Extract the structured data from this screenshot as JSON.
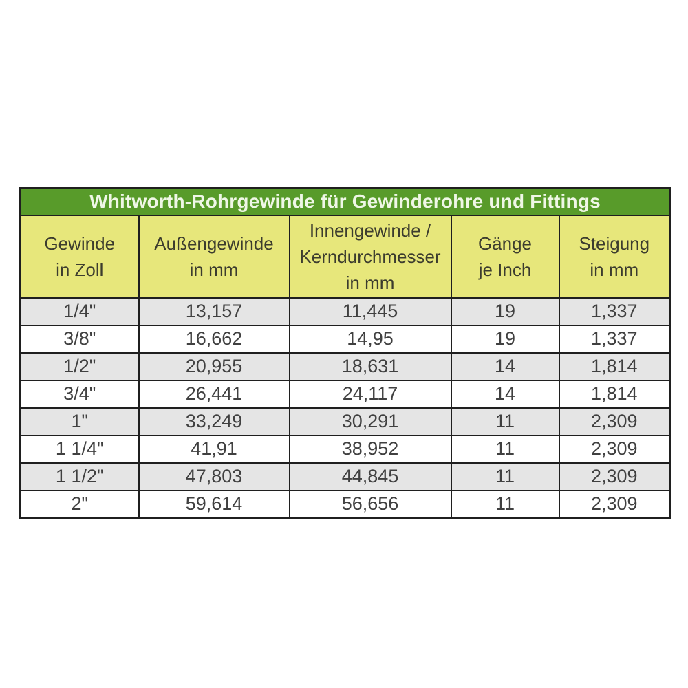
{
  "colors": {
    "title_bg": "#589b2a",
    "title_text": "#eff7e6",
    "header_bg": "#e7e77b",
    "header_text": "#3c3c2e",
    "row_alt_bg": "#e5e5e5",
    "row_bg": "#ffffff",
    "border": "#1f1f1f",
    "cell_text": "#404040",
    "page_bg": "#ffffff"
  },
  "table": {
    "title": "Whitworth-Rohrgewinde für Gewinderohre und Fittings",
    "columns": [
      {
        "label": "Gewinde in Zoll",
        "lines": [
          "Gewinde",
          "in Zoll"
        ]
      },
      {
        "label": "Außengewinde in mm",
        "lines": [
          "Außengewinde",
          "in mm"
        ]
      },
      {
        "label": "Innengewinde / Kerndurchmesser in mm",
        "lines": [
          "Innengewinde /",
          "Kerndurchmesser",
          "in mm"
        ]
      },
      {
        "label": "Gänge je Inch",
        "lines": [
          "Gänge",
          "je Inch"
        ]
      },
      {
        "label": "Steigung in mm",
        "lines": [
          "Steigung",
          "in mm"
        ]
      }
    ],
    "rows": [
      [
        "1/4\"",
        "13,157",
        "11,445",
        "19",
        "1,337"
      ],
      [
        "3/8\"",
        "16,662",
        "14,95",
        "19",
        "1,337"
      ],
      [
        "1/2\"",
        "20,955",
        "18,631",
        "14",
        "1,814"
      ],
      [
        "3/4\"",
        "26,441",
        "24,117",
        "14",
        "1,814"
      ],
      [
        "1\"",
        "33,249",
        "30,291",
        "11",
        "2,309"
      ],
      [
        "1 1/4\"",
        "41,91",
        "38,952",
        "11",
        "2,309"
      ],
      [
        "1 1/2\"",
        "47,803",
        "44,845",
        "11",
        "2,309"
      ],
      [
        "2\"",
        "59,614",
        "56,656",
        "11",
        "2,309"
      ]
    ]
  },
  "chart_data": {
    "type": "table",
    "title": "Whitworth-Rohrgewinde für Gewinderohre und Fittings",
    "columns": [
      "Gewinde in Zoll",
      "Außengewinde in mm",
      "Innengewinde / Kerndurchmesser in mm",
      "Gänge je Inch",
      "Steigung in mm"
    ],
    "rows": [
      [
        "1/4\"",
        "13,157",
        "11,445",
        "19",
        "1,337"
      ],
      [
        "3/8\"",
        "16,662",
        "14,95",
        "19",
        "1,337"
      ],
      [
        "1/2\"",
        "20,955",
        "18,631",
        "14",
        "1,814"
      ],
      [
        "3/4\"",
        "26,441",
        "24,117",
        "14",
        "1,814"
      ],
      [
        "1\"",
        "33,249",
        "30,291",
        "11",
        "2,309"
      ],
      [
        "1 1/4\"",
        "41,91",
        "38,952",
        "11",
        "2,309"
      ],
      [
        "1 1/2\"",
        "47,803",
        "44,845",
        "11",
        "2,309"
      ],
      [
        "2\"",
        "59,614",
        "56,656",
        "11",
        "2,309"
      ]
    ],
    "notes": "Numeric values use German decimal commas; alternating row shading starting gray on first data row"
  }
}
